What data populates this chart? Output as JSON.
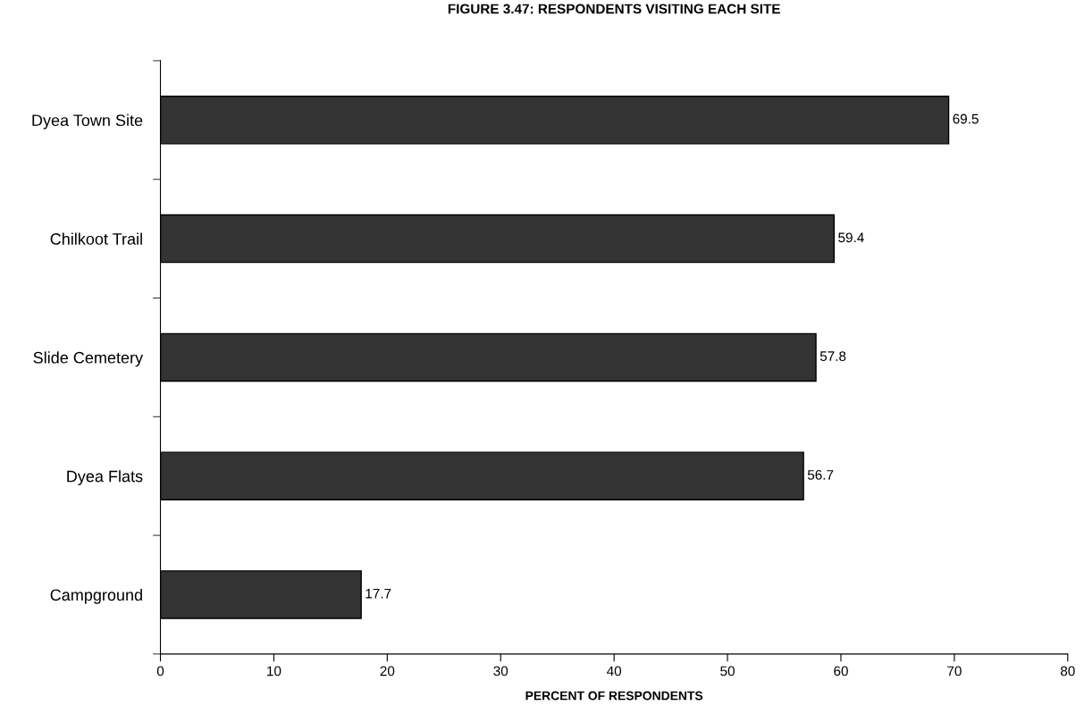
{
  "chart_data": {
    "type": "bar",
    "orientation": "horizontal",
    "title": "FIGURE 3.47: RESPONDENTS VISITING EACH SITE",
    "xlabel": "PERCENT OF RESPONDENTS",
    "categories": [
      "Dyea Town Site",
      "Chilkoot Trail",
      "Slide Cemetery",
      "Dyea Flats",
      "Campground"
    ],
    "values": [
      69.5,
      59.4,
      57.8,
      56.7,
      17.7
    ],
    "color": "#333333",
    "xlim": [
      0,
      80
    ],
    "xticks": [
      0,
      10,
      20,
      30,
      40,
      50,
      60,
      70,
      80
    ],
    "grid": false,
    "data_labels": true
  }
}
